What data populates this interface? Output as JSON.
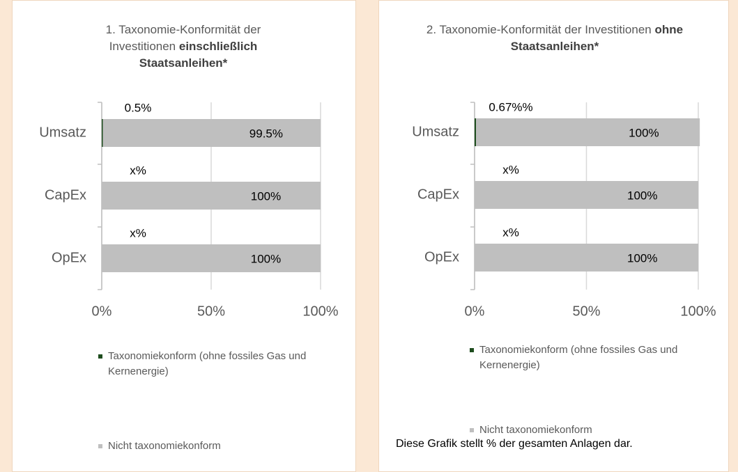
{
  "chart_data": [
    {
      "type": "bar",
      "orientation": "horizontal",
      "stacked": true,
      "title": "1. Taxonomie-Konformität der Investitionen",
      "title_bold": "einschließlich Staatsanleihen*",
      "categories": [
        "Umsatz",
        "CapEx",
        "OpEx"
      ],
      "series": [
        {
          "name": "Taxonomiekonform (ohne fossiles Gas und Kernenergie)",
          "color": "#1e4d1e",
          "values": [
            0.5,
            null,
            null
          ],
          "value_labels": [
            "0.5%",
            "x%",
            "x%"
          ]
        },
        {
          "name": "Nicht taxonomiekonform",
          "color": "#bfbfbf",
          "values": [
            99.5,
            100,
            100
          ],
          "value_labels": [
            "99.5%",
            "100%",
            "100%"
          ]
        }
      ],
      "xlim": [
        0,
        100
      ],
      "xticks": [
        {
          "value": 0,
          "label": "0%"
        },
        {
          "value": 50,
          "label": "50%"
        },
        {
          "value": 100,
          "label": "100%"
        }
      ],
      "grid": true
    },
    {
      "type": "bar",
      "orientation": "horizontal",
      "stacked": true,
      "title": "2. Taxonomie-Konformität der Investitionen",
      "title_bold": "ohne Staatsanleihen*",
      "categories": [
        "Umsatz",
        "CapEx",
        "OpEx"
      ],
      "series": [
        {
          "name": "Taxonomiekonform (ohne fossiles Gas und Kernenergie)",
          "color": "#1e4d1e",
          "values": [
            0.67,
            null,
            null
          ],
          "value_labels": [
            "0.67%%",
            "x%",
            "x%"
          ]
        },
        {
          "name": "Nicht taxonomiekonform",
          "color": "#bfbfbf",
          "values": [
            100,
            100,
            100
          ],
          "value_labels": [
            "100%",
            "100%",
            "100%"
          ]
        }
      ],
      "xlim": [
        0,
        100
      ],
      "xticks": [
        {
          "value": 0,
          "label": "0%"
        },
        {
          "value": 50,
          "label": "50%"
        },
        {
          "value": 100,
          "label": "100%"
        }
      ],
      "grid": true,
      "note": "Diese Grafik stellt % der gesamten Anlagen dar."
    }
  ]
}
